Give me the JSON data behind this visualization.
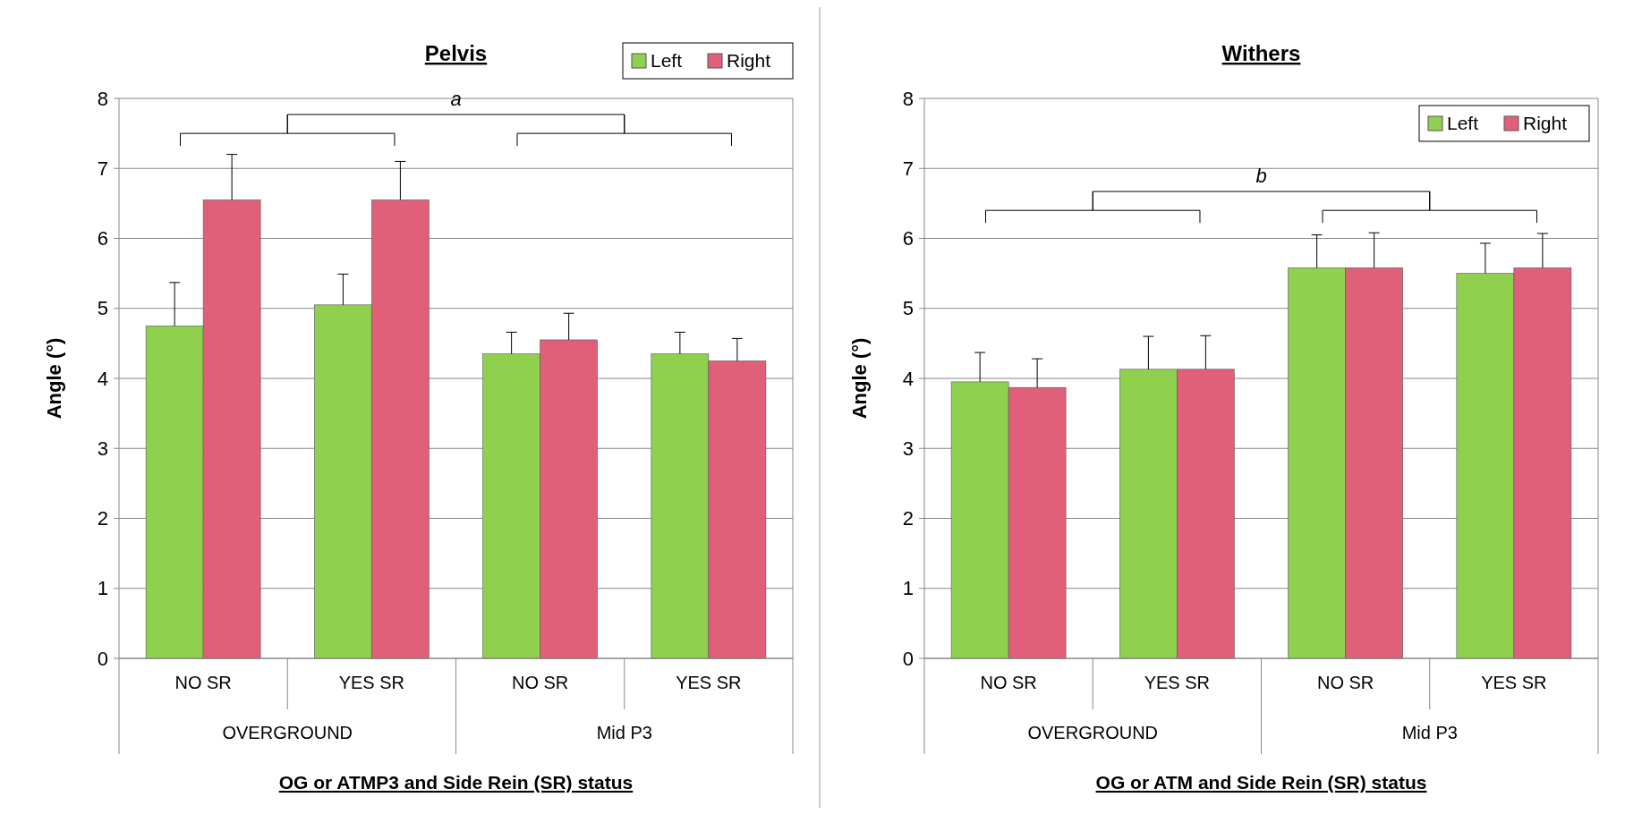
{
  "chart_data": [
    {
      "type": "bar",
      "title": "Pelvis",
      "xlabel": "OG or ATMP3 and Side Rein (SR) status",
      "ylabel": "Angle (°)",
      "categories": [
        "NO SR",
        "YES SR",
        "NO SR",
        "YES SR"
      ],
      "series": [
        {
          "name": "Left",
          "color": "#8fd14f",
          "values": [
            4.75,
            5.05,
            4.35,
            4.35
          ],
          "errors": [
            [
              4.75,
              5.37
            ],
            [
              5.05,
              5.49
            ],
            [
              4.35,
              4.66
            ],
            [
              4.35,
              4.66
            ]
          ]
        },
        {
          "name": "Right",
          "color": "#e0607a",
          "values": [
            6.55,
            6.55,
            4.55,
            4.25
          ],
          "errors": [
            [
              6.55,
              7.2
            ],
            [
              6.55,
              7.1
            ],
            [
              4.55,
              4.93
            ],
            [
              4.25,
              4.57
            ]
          ]
        }
      ],
      "ylim": [
        0,
        8
      ],
      "yticks": [
        0,
        1,
        2,
        3,
        4,
        5,
        6,
        7,
        8
      ],
      "grid": "y",
      "legend": "top",
      "annotations": [
        "OVERGROUND",
        "Mid P3",
        "a"
      ]
    },
    {
      "type": "bar",
      "title": "Withers",
      "xlabel": "OG or ATM and Side Rein (SR) status",
      "ylabel": "Angle (°)",
      "categories": [
        "NO SR",
        "YES SR",
        "NO SR",
        "YES SR"
      ],
      "series": [
        {
          "name": "Left",
          "color": "#8fd14f",
          "values": [
            3.95,
            4.13,
            5.58,
            5.5
          ],
          "errors": [
            [
              3.95,
              4.37
            ],
            [
              4.13,
              4.6
            ],
            [
              5.58,
              6.05
            ],
            [
              5.5,
              5.93
            ]
          ]
        },
        {
          "name": "Right",
          "color": "#e0607a",
          "values": [
            3.87,
            4.13,
            5.58,
            5.58
          ],
          "errors": [
            [
              3.87,
              4.28
            ],
            [
              4.13,
              4.61
            ],
            [
              5.58,
              6.08
            ],
            [
              5.58,
              6.07
            ]
          ]
        }
      ],
      "ylim": [
        0,
        8
      ],
      "yticks": [
        0,
        1,
        2,
        3,
        4,
        5,
        6,
        7,
        8
      ],
      "grid": "y",
      "legend": "top right",
      "annotations": [
        "OVERGROUND",
        "Mid P3",
        "b"
      ]
    }
  ]
}
